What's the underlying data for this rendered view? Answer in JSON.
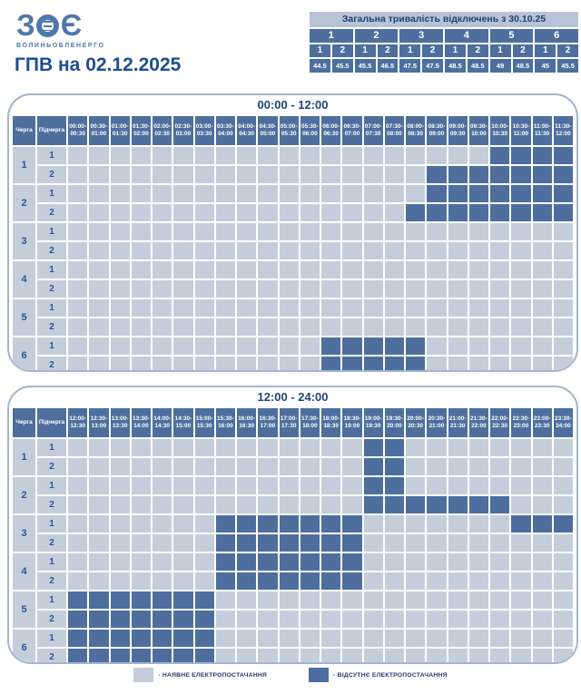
{
  "title": "ГПВ на 02.12.2025",
  "logo": {
    "mark_left": "З",
    "mark_right": "Є",
    "name": "ВОЛИНЬОБЛЕНЕРГО"
  },
  "table_headers": {
    "queue": "Черга",
    "subqueue": "Підчерга"
  },
  "legend": {
    "available": "- НАЯВНЕ ЕЛЕКТРОПОСТАЧАННЯ",
    "absent": "- ВІДСУТНЄ ЕЛЕКТРОПОСТАЧАННЯ"
  },
  "colors": {
    "outage": "#4e6f9e",
    "power_on": "#c4cedb",
    "accent_text": "#1d4e91",
    "summary_title_bg": "#b8c3d5",
    "box_border": "#a3b5cd"
  },
  "chart_data": [
    {
      "type": "table",
      "title": "Загальна тривалість відключень з 30.10.25",
      "group_labels": [
        "1",
        "2",
        "3",
        "4",
        "5",
        "6"
      ],
      "sub_labels": [
        "1",
        "2",
        "1",
        "2",
        "1",
        "2",
        "1",
        "2",
        "1",
        "2",
        "1",
        "2"
      ],
      "values": [
        44.5,
        45.5,
        45.5,
        46.5,
        47.5,
        47.5,
        48.5,
        48.5,
        49,
        48.5,
        45,
        45.5
      ]
    },
    {
      "type": "heatmap",
      "title": "00:00 - 12:00",
      "x_slots": [
        "00:00-00:30",
        "00:30-01:00",
        "01:00-01:30",
        "01:30-02:00",
        "02:00-02:30",
        "02:30-03:00",
        "03:00-03:30",
        "03:30-04:00",
        "04:00-04:30",
        "04:30-05:00",
        "05:00-05:30",
        "05:30-06:00",
        "06:00-06:30",
        "06:30-07:00",
        "07:00-07:30",
        "07:30-08:00",
        "08:00-08:30",
        "08:30-09:00",
        "09:00-09:30",
        "09:30-10:00",
        "10:00-10:30",
        "10:30-11:00",
        "11:00-11:30",
        "11:30-12:00"
      ],
      "rows": [
        {
          "queue": "1",
          "sub": "1",
          "cells": [
            0,
            0,
            0,
            0,
            0,
            0,
            0,
            0,
            0,
            0,
            0,
            0,
            0,
            0,
            0,
            0,
            0,
            0,
            0,
            0,
            1,
            1,
            1,
            1
          ]
        },
        {
          "queue": "1",
          "sub": "2",
          "cells": [
            0,
            0,
            0,
            0,
            0,
            0,
            0,
            0,
            0,
            0,
            0,
            0,
            0,
            0,
            0,
            0,
            0,
            1,
            1,
            1,
            1,
            1,
            1,
            1
          ]
        },
        {
          "queue": "2",
          "sub": "1",
          "cells": [
            0,
            0,
            0,
            0,
            0,
            0,
            0,
            0,
            0,
            0,
            0,
            0,
            0,
            0,
            0,
            0,
            0,
            1,
            1,
            1,
            1,
            1,
            1,
            1
          ]
        },
        {
          "queue": "2",
          "sub": "2",
          "cells": [
            0,
            0,
            0,
            0,
            0,
            0,
            0,
            0,
            0,
            0,
            0,
            0,
            0,
            0,
            0,
            0,
            1,
            1,
            1,
            1,
            1,
            1,
            1,
            1
          ]
        },
        {
          "queue": "3",
          "sub": "1",
          "cells": [
            0,
            0,
            0,
            0,
            0,
            0,
            0,
            0,
            0,
            0,
            0,
            0,
            0,
            0,
            0,
            0,
            0,
            0,
            0,
            0,
            0,
            0,
            0,
            0
          ]
        },
        {
          "queue": "3",
          "sub": "2",
          "cells": [
            0,
            0,
            0,
            0,
            0,
            0,
            0,
            0,
            0,
            0,
            0,
            0,
            0,
            0,
            0,
            0,
            0,
            0,
            0,
            0,
            0,
            0,
            0,
            0
          ]
        },
        {
          "queue": "4",
          "sub": "1",
          "cells": [
            0,
            0,
            0,
            0,
            0,
            0,
            0,
            0,
            0,
            0,
            0,
            0,
            0,
            0,
            0,
            0,
            0,
            0,
            0,
            0,
            0,
            0,
            0,
            0
          ]
        },
        {
          "queue": "4",
          "sub": "2",
          "cells": [
            0,
            0,
            0,
            0,
            0,
            0,
            0,
            0,
            0,
            0,
            0,
            0,
            0,
            0,
            0,
            0,
            0,
            0,
            0,
            0,
            0,
            0,
            0,
            0
          ]
        },
        {
          "queue": "5",
          "sub": "1",
          "cells": [
            0,
            0,
            0,
            0,
            0,
            0,
            0,
            0,
            0,
            0,
            0,
            0,
            0,
            0,
            0,
            0,
            0,
            0,
            0,
            0,
            0,
            0,
            0,
            0
          ]
        },
        {
          "queue": "5",
          "sub": "2",
          "cells": [
            0,
            0,
            0,
            0,
            0,
            0,
            0,
            0,
            0,
            0,
            0,
            0,
            0,
            0,
            0,
            0,
            0,
            0,
            0,
            0,
            0,
            0,
            0,
            0
          ]
        },
        {
          "queue": "6",
          "sub": "1",
          "cells": [
            0,
            0,
            0,
            0,
            0,
            0,
            0,
            0,
            0,
            0,
            0,
            0,
            1,
            1,
            1,
            1,
            1,
            0,
            0,
            0,
            0,
            0,
            0,
            0
          ]
        },
        {
          "queue": "6",
          "sub": "2",
          "cells": [
            0,
            0,
            0,
            0,
            0,
            0,
            0,
            0,
            0,
            0,
            0,
            0,
            1,
            1,
            1,
            1,
            1,
            0,
            0,
            0,
            0,
            0,
            0,
            0
          ]
        }
      ]
    },
    {
      "type": "heatmap",
      "title": "12:00 - 24:00",
      "x_slots": [
        "12:00-12:30",
        "12:30-13:00",
        "13:00-13:30",
        "13:30-14:00",
        "14:00-14:30",
        "14:30-15:00",
        "15:00-15:30",
        "15:30-16:00",
        "16:00-16:30",
        "16:30-17:00",
        "17:00-17:30",
        "17:30-18:00",
        "18:00-18:30",
        "18:30-19:00",
        "19:00-19:30",
        "19:30-20:00",
        "20:00-20:30",
        "20:30-21:00",
        "21:00-21:30",
        "21:30-22:00",
        "22:00-22:30",
        "22:30-23:00",
        "23:00-23:30",
        "23:30-24:00"
      ],
      "rows": [
        {
          "queue": "1",
          "sub": "1",
          "cells": [
            0,
            0,
            0,
            0,
            0,
            0,
            0,
            0,
            0,
            0,
            0,
            0,
            0,
            0,
            1,
            1,
            0,
            0,
            0,
            0,
            0,
            0,
            0,
            0
          ]
        },
        {
          "queue": "1",
          "sub": "2",
          "cells": [
            0,
            0,
            0,
            0,
            0,
            0,
            0,
            0,
            0,
            0,
            0,
            0,
            0,
            0,
            1,
            1,
            0,
            0,
            0,
            0,
            0,
            0,
            0,
            0
          ]
        },
        {
          "queue": "2",
          "sub": "1",
          "cells": [
            0,
            0,
            0,
            0,
            0,
            0,
            0,
            0,
            0,
            0,
            0,
            0,
            0,
            0,
            1,
            1,
            0,
            0,
            0,
            0,
            0,
            0,
            0,
            0
          ]
        },
        {
          "queue": "2",
          "sub": "2",
          "cells": [
            0,
            0,
            0,
            0,
            0,
            0,
            0,
            0,
            0,
            0,
            0,
            0,
            0,
            0,
            1,
            1,
            1,
            1,
            1,
            1,
            1,
            0,
            0,
            0
          ]
        },
        {
          "queue": "3",
          "sub": "1",
          "cells": [
            0,
            0,
            0,
            0,
            0,
            0,
            0,
            1,
            1,
            1,
            1,
            1,
            1,
            1,
            0,
            0,
            0,
            0,
            0,
            0,
            0,
            1,
            1,
            1
          ]
        },
        {
          "queue": "3",
          "sub": "2",
          "cells": [
            0,
            0,
            0,
            0,
            0,
            0,
            0,
            1,
            1,
            1,
            1,
            1,
            1,
            1,
            0,
            0,
            0,
            0,
            0,
            0,
            0,
            0,
            0,
            0
          ]
        },
        {
          "queue": "4",
          "sub": "1",
          "cells": [
            0,
            0,
            0,
            0,
            0,
            0,
            0,
            1,
            1,
            1,
            1,
            1,
            1,
            1,
            0,
            0,
            0,
            0,
            0,
            0,
            0,
            0,
            0,
            0
          ]
        },
        {
          "queue": "4",
          "sub": "2",
          "cells": [
            0,
            0,
            0,
            0,
            0,
            0,
            0,
            1,
            1,
            1,
            1,
            1,
            1,
            1,
            0,
            0,
            0,
            0,
            0,
            0,
            0,
            0,
            0,
            0
          ]
        },
        {
          "queue": "5",
          "sub": "1",
          "cells": [
            1,
            1,
            1,
            1,
            1,
            1,
            1,
            0,
            0,
            0,
            0,
            0,
            0,
            0,
            0,
            0,
            0,
            0,
            0,
            0,
            0,
            0,
            0,
            0
          ]
        },
        {
          "queue": "5",
          "sub": "2",
          "cells": [
            1,
            1,
            1,
            1,
            1,
            1,
            1,
            0,
            0,
            0,
            0,
            0,
            0,
            0,
            0,
            0,
            0,
            0,
            0,
            0,
            0,
            0,
            0,
            0
          ]
        },
        {
          "queue": "6",
          "sub": "1",
          "cells": [
            1,
            1,
            1,
            1,
            1,
            1,
            1,
            0,
            0,
            0,
            0,
            0,
            0,
            0,
            0,
            0,
            0,
            0,
            0,
            0,
            0,
            0,
            0,
            0
          ]
        },
        {
          "queue": "6",
          "sub": "2",
          "cells": [
            1,
            1,
            1,
            1,
            1,
            1,
            1,
            0,
            0,
            0,
            0,
            0,
            0,
            0,
            0,
            0,
            0,
            0,
            0,
            0,
            0,
            0,
            0,
            0
          ]
        }
      ]
    }
  ]
}
